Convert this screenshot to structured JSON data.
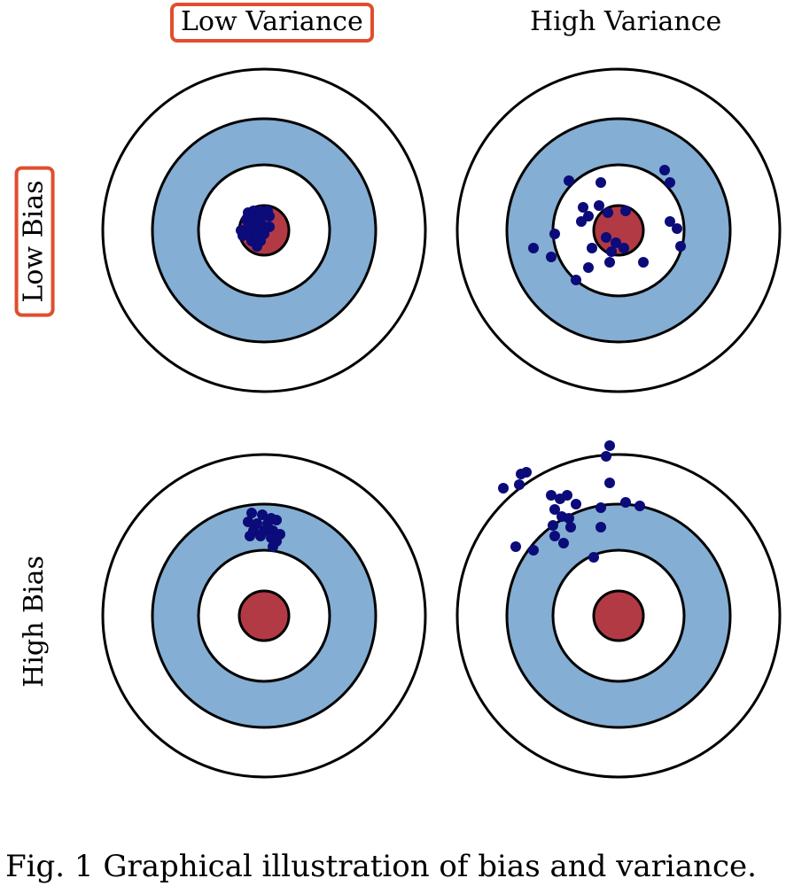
{
  "column_labels": {
    "low_variance": "Low Variance",
    "high_variance": "High Variance"
  },
  "row_labels": {
    "low_bias": "Low Bias",
    "high_bias": "High Bias"
  },
  "caption": "Fig. 1 Graphical illustration of bias and variance.",
  "colors": {
    "ring_outer": "#ffffff",
    "ring_blue": "#84aed3",
    "ring_inner": "#ffffff",
    "bullseye": "#b23a44",
    "dots": "#0b0b7a",
    "highlight_border": "#e04e2e"
  },
  "targets": [
    {
      "name": "low-bias-low-variance",
      "shots": [
        [
          -18,
          -20
        ],
        [
          -12,
          -22
        ],
        [
          -4,
          -22
        ],
        [
          4,
          -22
        ],
        [
          -20,
          -12
        ],
        [
          -12,
          -12
        ],
        [
          -4,
          -14
        ],
        [
          6,
          -16
        ],
        [
          -26,
          0
        ],
        [
          -18,
          -4
        ],
        [
          -10,
          -4
        ],
        [
          -2,
          -6
        ],
        [
          6,
          -4
        ],
        [
          -24,
          6
        ],
        [
          -16,
          6
        ],
        [
          -8,
          2
        ],
        [
          0,
          4
        ],
        [
          -14,
          12
        ],
        [
          -4,
          12
        ],
        [
          -8,
          18
        ]
      ]
    },
    {
      "name": "low-bias-high-variance",
      "shots": [
        [
          52,
          -68
        ],
        [
          58,
          -54
        ],
        [
          -56,
          -56
        ],
        [
          -20,
          -54
        ],
        [
          -22,
          -28
        ],
        [
          -40,
          -26
        ],
        [
          -12,
          -20
        ],
        [
          -34,
          -16
        ],
        [
          58,
          -10
        ],
        [
          66,
          -2
        ],
        [
          -42,
          -10
        ],
        [
          8,
          -22
        ],
        [
          -72,
          4
        ],
        [
          70,
          18
        ],
        [
          -14,
          8
        ],
        [
          -3,
          14
        ],
        [
          -96,
          20
        ],
        [
          -30,
          20
        ],
        [
          -76,
          30
        ],
        [
          -8,
          24
        ],
        [
          6,
          20
        ],
        [
          -10,
          36
        ],
        [
          28,
          36
        ],
        [
          -34,
          42
        ],
        [
          -48,
          56
        ]
      ]
    },
    {
      "name": "high-bias-low-variance",
      "shots": [
        [
          -14,
          -116
        ],
        [
          -2,
          -114
        ],
        [
          8,
          -110
        ],
        [
          14,
          -108
        ],
        [
          -18,
          -106
        ],
        [
          -8,
          -104
        ],
        [
          4,
          -104
        ],
        [
          -12,
          -96
        ],
        [
          0,
          -96
        ],
        [
          10,
          -96
        ],
        [
          -16,
          -90
        ],
        [
          -4,
          -90
        ],
        [
          8,
          -88
        ],
        [
          18,
          -92
        ],
        [
          14,
          -84
        ],
        [
          10,
          -78
        ]
      ]
    },
    {
      "name": "high-bias-high-variance",
      "shots": [
        [
          -10,
          -192
        ],
        [
          -14,
          -180
        ],
        [
          -104,
          -162
        ],
        [
          -110,
          -160
        ],
        [
          -112,
          -148
        ],
        [
          -130,
          -144
        ],
        [
          -10,
          -150
        ],
        [
          -76,
          -136
        ],
        [
          -66,
          -132
        ],
        [
          -58,
          -136
        ],
        [
          -48,
          -126
        ],
        [
          -72,
          -120
        ],
        [
          -64,
          -112
        ],
        [
          -56,
          -110
        ],
        [
          -20,
          -122
        ],
        [
          8,
          -128
        ],
        [
          24,
          -124
        ],
        [
          -74,
          -102
        ],
        [
          -54,
          -100
        ],
        [
          -20,
          -100
        ],
        [
          -72,
          -90
        ],
        [
          -62,
          -82
        ],
        [
          -116,
          -78
        ],
        [
          -96,
          -74
        ],
        [
          -28,
          -66
        ]
      ]
    }
  ]
}
